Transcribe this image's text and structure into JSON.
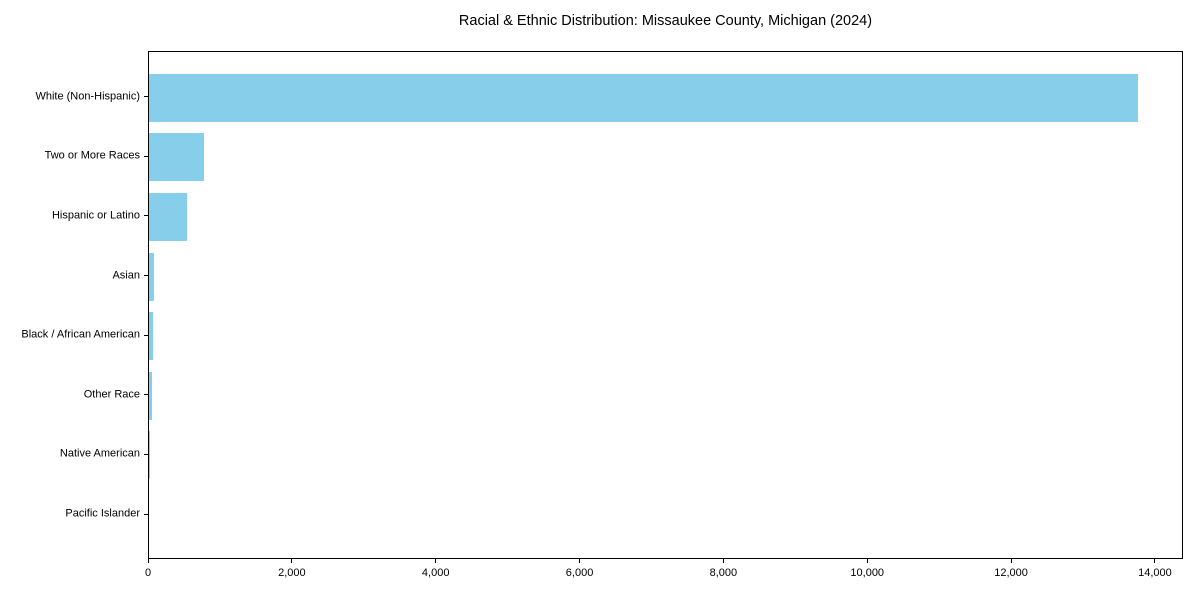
{
  "title": "Racial & Ethnic Distribution: Missaukee County, Michigan (2024)",
  "colors": {
    "bar": "#87CEEB",
    "axis": "#000000",
    "text": "#000000",
    "background": "#ffffff"
  },
  "chart_data": {
    "type": "bar",
    "orientation": "horizontal",
    "title": "Racial & Ethnic Distribution: Missaukee County, Michigan (2024)",
    "categories": [
      "White (Non-Hispanic)",
      "Two or More Races",
      "Hispanic or Latino",
      "Asian",
      "Black / African American",
      "Other Race",
      "Native American",
      "Pacific Islander"
    ],
    "values": [
      13745,
      760,
      525,
      70,
      60,
      38,
      15,
      0
    ],
    "xlabel": "",
    "ylabel": "",
    "xlim": [
      0,
      14390
    ],
    "x_ticks": [
      0,
      2000,
      4000,
      6000,
      8000,
      10000,
      12000,
      14000
    ],
    "x_tick_labels": [
      "0",
      "2,000",
      "4,000",
      "6,000",
      "8,000",
      "10,000",
      "12,000",
      "14,000"
    ],
    "grid": false,
    "legend": false,
    "bar_color": "#87CEEB"
  }
}
